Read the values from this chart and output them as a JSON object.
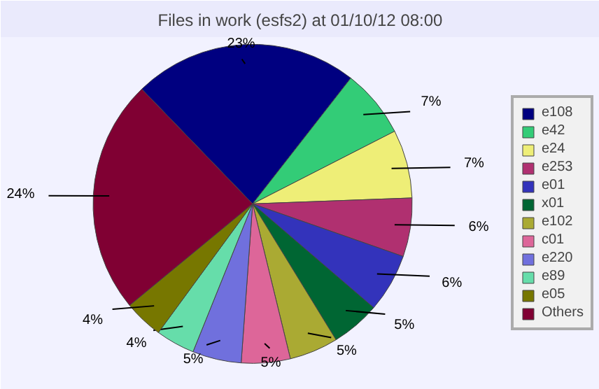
{
  "chart_data": {
    "type": "pie",
    "title": "Files in work (esfs2) at 01/10/12 08:00",
    "categories": [
      "e108",
      "e42",
      "e24",
      "e253",
      "e01",
      "x01",
      "e102",
      "c01",
      "e220",
      "e89",
      "e05",
      "Others"
    ],
    "values": [
      23,
      7,
      7,
      6,
      6,
      5,
      5,
      5,
      5,
      4,
      4,
      24
    ],
    "value_labels": [
      "23%",
      "7%",
      "7%",
      "6%",
      "6%",
      "5%",
      "5%",
      "5%",
      "5%",
      "4%",
      "4%",
      "24%"
    ],
    "colors": [
      "#000080",
      "#33cc77",
      "#eeee77",
      "#b03070",
      "#3333bb",
      "#006633",
      "#aaaa33",
      "#dd6699",
      "#7070dd",
      "#66ddaa",
      "#777700",
      "#800033"
    ],
    "legend": "right"
  }
}
